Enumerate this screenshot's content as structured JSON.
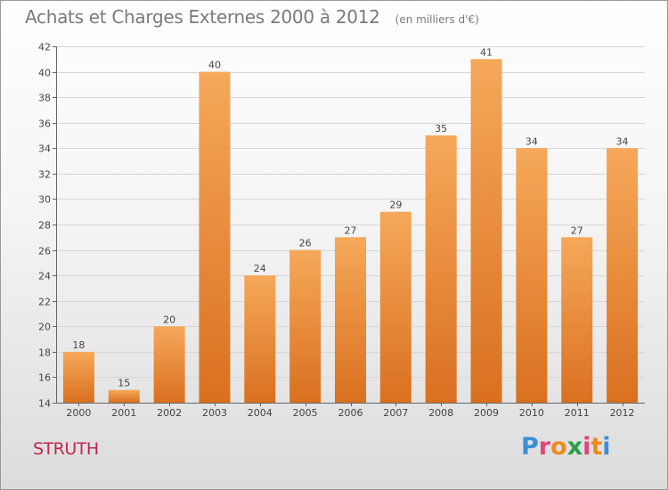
{
  "header": {
    "title": "Achats et Charges Externes 2000 à 2012",
    "subtitle": "(en milliers d'€)"
  },
  "place": "STRUTH",
  "logo": {
    "text": "Proxiti",
    "letters": [
      "P",
      "r",
      "o",
      "x",
      "i",
      "t",
      "i"
    ],
    "colors": [
      "#3b8fd6",
      "#e0457b",
      "#f08a1c",
      "#2a9d4a",
      "#e0457b",
      "#f08a1c",
      "#3b8fd6"
    ]
  },
  "colors": {
    "bar_top": "#f6a85a",
    "bar_bottom": "#d9701f",
    "grid": "#d6d6d6"
  },
  "chart_data": {
    "type": "bar",
    "title": "Achats et Charges Externes 2000 à 2012",
    "subtitle": "(en milliers d'€)",
    "categories": [
      "2000",
      "2001",
      "2002",
      "2003",
      "2004",
      "2005",
      "2006",
      "2007",
      "2008",
      "2009",
      "2010",
      "2011",
      "2012"
    ],
    "values": [
      18,
      15,
      20,
      40,
      24,
      26,
      27,
      29,
      35,
      41,
      34,
      27,
      34
    ],
    "data_labels": [
      "18",
      "15",
      "20",
      "40",
      "24",
      "26",
      "27",
      "29",
      "35",
      "41",
      "34",
      "27",
      "34"
    ],
    "ylim": [
      14,
      42
    ],
    "yticks": [
      14,
      16,
      18,
      20,
      22,
      24,
      26,
      28,
      30,
      32,
      34,
      36,
      38,
      40,
      42
    ],
    "grid": true,
    "legend": "none"
  }
}
